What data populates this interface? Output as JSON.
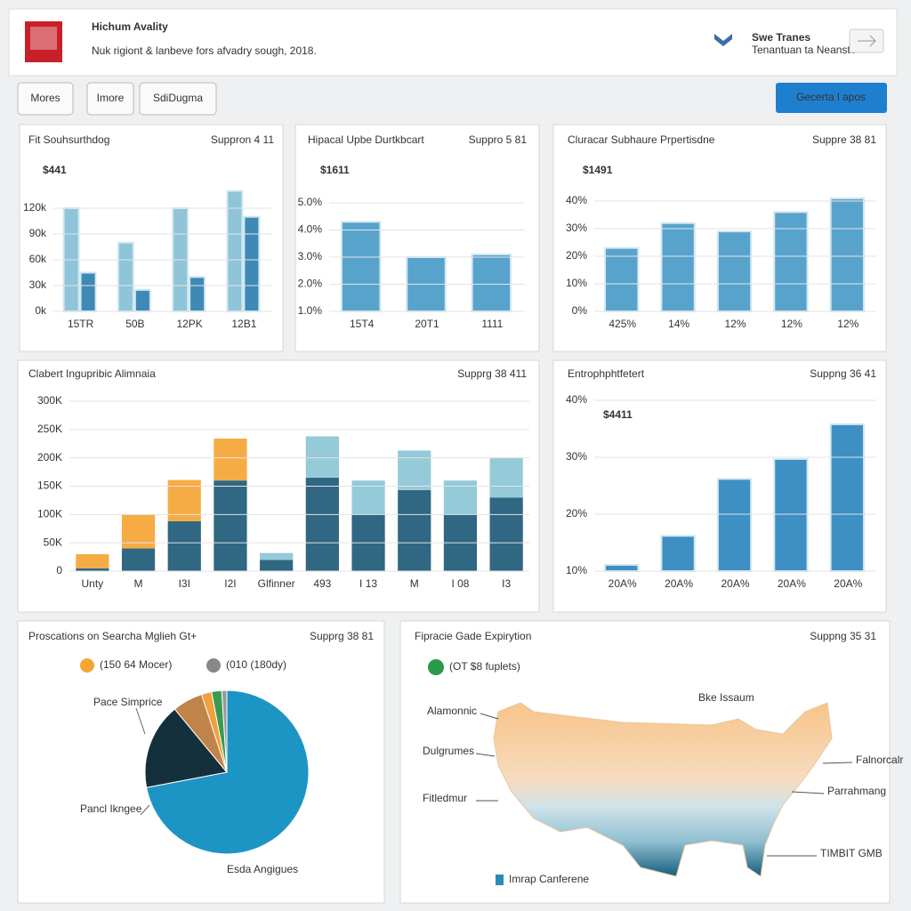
{
  "header": {
    "title": "Hichum Avality",
    "subtitle": "Nuk rigiont & lanbeve fors afvadry sough, 2018.",
    "brand": "Swe Tranes",
    "brand_sub": "Tenantuan ta Neanste"
  },
  "toolbar": {
    "buttons": [
      "Mores",
      "Imore",
      "SdiDugma"
    ],
    "action": "Gecerta l apos"
  },
  "chart_data": [
    {
      "type": "bar",
      "title": "Fit Souhsurthdog",
      "badge": "Suppron 4 11",
      "kpi": "$441",
      "categories": [
        "15TR",
        "50B",
        "12PK",
        "12B1"
      ],
      "series": [
        {
          "color": "#86c0d6",
          "values": [
            120,
            80,
            120,
            140
          ]
        },
        {
          "color": "#2f7fb0",
          "values": [
            45,
            25,
            40,
            110
          ]
        }
      ],
      "ylim": [
        0,
        150
      ],
      "yticks": [
        {
          "value": 0,
          "label": "0k"
        },
        {
          "value": 30,
          "label": "30k"
        },
        {
          "value": 60,
          "label": "60k"
        },
        {
          "value": 90,
          "label": "90k"
        },
        {
          "value": 120,
          "label": "120k"
        }
      ]
    },
    {
      "type": "bar",
      "title": "Hipacal Upbe Durtkbcart",
      "badge": "Suppro 5 81",
      "kpi": "$1611",
      "categories": [
        "15T4",
        "20T1",
        "1111"
      ],
      "series": [
        {
          "color": "#4a9cc8",
          "values": [
            4.3,
            3,
            3.1
          ]
        }
      ],
      "ylim": [
        1,
        5
      ],
      "yticks": [
        {
          "value": 1,
          "label": "1.0%"
        },
        {
          "value": 2,
          "label": "2.0%"
        },
        {
          "value": 3,
          "label": "3.0%"
        },
        {
          "value": 4,
          "label": "4.0%"
        },
        {
          "value": 5,
          "label": "5.0%"
        }
      ]
    },
    {
      "type": "bar",
      "title": "Cluracar Subhaure Prpertisdne",
      "badge": "Suppre 38 81",
      "kpi": "$1491",
      "categories": [
        "425%",
        "14%",
        "12%",
        "12%",
        "12%"
      ],
      "series": [
        {
          "color": "#4a9cc8",
          "values": [
            23,
            32,
            29,
            36,
            41
          ]
        }
      ],
      "ylim": [
        0,
        40
      ],
      "yticks": [
        {
          "value": 0,
          "label": "0%"
        },
        {
          "value": 10,
          "label": "10%"
        },
        {
          "value": 20,
          "label": "20%"
        },
        {
          "value": 30,
          "label": "30%"
        },
        {
          "value": 40,
          "label": "40%"
        }
      ]
    },
    {
      "type": "stacked_bar",
      "title": "Clabert Ingupribic Alimnaia",
      "badge": "Supprg 38 411",
      "categories": [
        "Unty",
        "M",
        "I3I",
        "I2I",
        "Glfinner",
        "493",
        "I 13",
        "M",
        "I 08",
        "I3"
      ],
      "series": [
        {
          "color": "#1e5a78",
          "values": [
            5,
            40,
            88,
            160,
            20,
            165,
            100,
            143,
            100,
            130
          ]
        },
        {
          "colors": [
            "#f5a535",
            "#f5a535",
            "#f5a535",
            "#f5a535",
            "#8cc6d6",
            "#8cc6d6",
            "#8cc6d6",
            "#8cc6d6",
            "#8cc6d6",
            "#8cc6d6"
          ],
          "values": [
            25,
            60,
            73,
            74,
            12,
            73,
            60,
            70,
            60,
            70
          ]
        }
      ],
      "ylim": [
        0,
        300
      ],
      "yticks": [
        0,
        {
          "value": 50,
          "label": "50K"
        },
        {
          "value": 100,
          "label": "100K"
        },
        {
          "value": 150,
          "label": "150K"
        },
        {
          "value": 200,
          "label": "200K"
        },
        {
          "value": 250,
          "label": "250K"
        },
        {
          "value": 300,
          "label": "300K"
        }
      ]
    },
    {
      "type": "bar",
      "title": "Entrophphtfetert",
      "kpi": "$4411",
      "badge": "Suppng 36 41",
      "categories": [
        "20A%",
        "20A%",
        "20A%",
        "20A%",
        "20A%"
      ],
      "series": [
        {
          "color": "#2d86c0",
          "values": [
            11.1,
            16.2,
            26.2,
            29.7,
            35.8
          ]
        }
      ],
      "ylim": [
        10,
        40
      ],
      "yticks": [
        {
          "value": 10,
          "label": "10%"
        },
        {
          "value": 20,
          "label": "20%"
        },
        {
          "value": 30,
          "label": "30%"
        },
        {
          "value": 40,
          "label": "40%"
        }
      ]
    },
    {
      "type": "pie",
      "title": "Proscations on Searcha Mglieh Gt+",
      "badge": "Supprg 38 81",
      "legend": [
        "(150 64 Mocer)",
        "(010 (180dy)"
      ],
      "legend_colors": [
        "#f5a535",
        "#888888"
      ],
      "annotations": [
        "Pace Simprice",
        "Pancl Ikngee",
        "Esda Angigues"
      ],
      "values": [
        72,
        17,
        6,
        2,
        2,
        1
      ],
      "colors": [
        "#1d95c4",
        "#14303c",
        "#c0844a",
        "#f0a040",
        "#3a9a50",
        "#999999"
      ]
    }
  ],
  "map": {
    "title": "Fipracie Gade Expirytion",
    "badge": "Suppng 35 31",
    "legend": "(OT $8 fuplets)",
    "labels": [
      "Alamonnic",
      "Dulgrumes",
      "Fitledmur",
      "Bke Issaum",
      "Falnorcalr",
      "Parrahmang",
      "TIMBIT GMB"
    ],
    "footer": "Imrap Canferene"
  }
}
